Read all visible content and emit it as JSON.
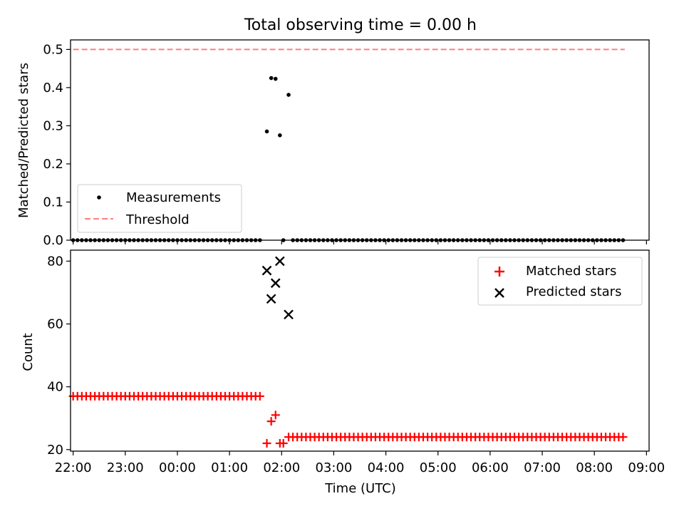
{
  "colors": {
    "measurements": "#000000",
    "threshold": "#ff7f7f",
    "matched": "#ff0000",
    "predicted": "#000000"
  },
  "chart_data": [
    {
      "type": "scatter",
      "title": "Total observing time = 0.00 h",
      "ylabel": "Matched/Predicted stars",
      "xlabel": "",
      "xlim": [
        "21:57",
        "09:03"
      ],
      "ylim": [
        0,
        0.525
      ],
      "yticks": [
        "0.0",
        "0.1",
        "0.2",
        "0.3",
        "0.4",
        "0.5"
      ],
      "legend_position": "lower-left",
      "grid": false,
      "series": [
        {
          "name": "Measurements",
          "marker": "dot",
          "points": [
            [
              "22:00",
              0
            ],
            [
              "22:05",
              0
            ],
            [
              "22:10",
              0
            ],
            [
              "22:15",
              0
            ],
            [
              "22:20",
              0
            ],
            [
              "22:25",
              0
            ],
            [
              "22:30",
              0
            ],
            [
              "22:35",
              0
            ],
            [
              "22:40",
              0
            ],
            [
              "22:45",
              0
            ],
            [
              "22:50",
              0
            ],
            [
              "22:55",
              0
            ],
            [
              "23:00",
              0
            ],
            [
              "23:05",
              0
            ],
            [
              "23:10",
              0
            ],
            [
              "23:15",
              0
            ],
            [
              "23:20",
              0
            ],
            [
              "23:25",
              0
            ],
            [
              "23:30",
              0
            ],
            [
              "23:35",
              0
            ],
            [
              "23:40",
              0
            ],
            [
              "23:45",
              0
            ],
            [
              "23:50",
              0
            ],
            [
              "23:55",
              0
            ],
            [
              "00:00",
              0
            ],
            [
              "00:05",
              0
            ],
            [
              "00:10",
              0
            ],
            [
              "00:15",
              0
            ],
            [
              "00:20",
              0
            ],
            [
              "00:25",
              0
            ],
            [
              "00:30",
              0
            ],
            [
              "00:35",
              0
            ],
            [
              "00:40",
              0
            ],
            [
              "00:45",
              0
            ],
            [
              "00:50",
              0
            ],
            [
              "00:55",
              0
            ],
            [
              "01:00",
              0
            ],
            [
              "01:05",
              0
            ],
            [
              "01:10",
              0
            ],
            [
              "01:15",
              0
            ],
            [
              "01:20",
              0
            ],
            [
              "01:25",
              0
            ],
            [
              "01:30",
              0
            ],
            [
              "01:35",
              0
            ],
            [
              "01:43",
              0.285
            ],
            [
              "01:48",
              0.425
            ],
            [
              "01:53",
              0.423
            ],
            [
              "01:58",
              0.275
            ],
            [
              "02:02",
              0
            ],
            [
              "02:08",
              0.381
            ],
            [
              "02:13",
              0
            ],
            [
              "02:18",
              0
            ],
            [
              "02:23",
              0
            ],
            [
              "02:28",
              0
            ],
            [
              "02:33",
              0
            ],
            [
              "02:38",
              0
            ],
            [
              "02:43",
              0
            ],
            [
              "02:48",
              0
            ],
            [
              "02:53",
              0
            ],
            [
              "02:58",
              0
            ],
            [
              "03:03",
              0
            ],
            [
              "03:08",
              0
            ],
            [
              "03:13",
              0
            ],
            [
              "03:18",
              0
            ],
            [
              "03:23",
              0
            ],
            [
              "03:28",
              0
            ],
            [
              "03:33",
              0
            ],
            [
              "03:38",
              0
            ],
            [
              "03:43",
              0
            ],
            [
              "03:48",
              0
            ],
            [
              "03:53",
              0
            ],
            [
              "03:58",
              0
            ],
            [
              "04:03",
              0
            ],
            [
              "04:08",
              0
            ],
            [
              "04:13",
              0
            ],
            [
              "04:18",
              0
            ],
            [
              "04:23",
              0
            ],
            [
              "04:28",
              0
            ],
            [
              "04:33",
              0
            ],
            [
              "04:38",
              0
            ],
            [
              "04:43",
              0
            ],
            [
              "04:48",
              0
            ],
            [
              "04:53",
              0
            ],
            [
              "04:58",
              0
            ],
            [
              "05:03",
              0
            ],
            [
              "05:08",
              0
            ],
            [
              "05:13",
              0
            ],
            [
              "05:18",
              0
            ],
            [
              "05:23",
              0
            ],
            [
              "05:28",
              0
            ],
            [
              "05:33",
              0
            ],
            [
              "05:38",
              0
            ],
            [
              "05:43",
              0
            ],
            [
              "05:48",
              0
            ],
            [
              "05:53",
              0
            ],
            [
              "05:58",
              0
            ],
            [
              "06:03",
              0
            ],
            [
              "06:08",
              0
            ],
            [
              "06:13",
              0
            ],
            [
              "06:18",
              0
            ],
            [
              "06:23",
              0
            ],
            [
              "06:28",
              0
            ],
            [
              "06:33",
              0
            ],
            [
              "06:38",
              0
            ],
            [
              "06:43",
              0
            ],
            [
              "06:48",
              0
            ],
            [
              "06:53",
              0
            ],
            [
              "06:58",
              0
            ],
            [
              "07:03",
              0
            ],
            [
              "07:08",
              0
            ],
            [
              "07:13",
              0
            ],
            [
              "07:18",
              0
            ],
            [
              "07:23",
              0
            ],
            [
              "07:28",
              0
            ],
            [
              "07:33",
              0
            ],
            [
              "07:38",
              0
            ],
            [
              "07:43",
              0
            ],
            [
              "07:48",
              0
            ],
            [
              "07:53",
              0
            ],
            [
              "07:58",
              0
            ],
            [
              "08:03",
              0
            ],
            [
              "08:08",
              0
            ],
            [
              "08:13",
              0
            ],
            [
              "08:18",
              0
            ],
            [
              "08:23",
              0
            ],
            [
              "08:28",
              0
            ],
            [
              "08:33",
              0
            ]
          ]
        },
        {
          "name": "Threshold",
          "line_style": "dashed",
          "points": [
            [
              "22:00",
              0.5
            ],
            [
              "08:35",
              0.5
            ]
          ]
        }
      ]
    },
    {
      "type": "scatter",
      "title": "",
      "ylabel": "Count",
      "xlabel": "Time (UTC)",
      "xlim": [
        "21:57",
        "09:03"
      ],
      "ylim": [
        19.5,
        83.5
      ],
      "xticks": [
        "22:00",
        "23:00",
        "00:00",
        "01:00",
        "02:00",
        "03:00",
        "04:00",
        "05:00",
        "06:00",
        "07:00",
        "08:00",
        "09:00"
      ],
      "yticks": [
        "20",
        "40",
        "60",
        "80"
      ],
      "legend_position": "upper-right",
      "grid": false,
      "series": [
        {
          "name": "Matched stars",
          "marker": "plus",
          "points": [
            [
              "22:00",
              37
            ],
            [
              "22:05",
              37
            ],
            [
              "22:10",
              37
            ],
            [
              "22:15",
              37
            ],
            [
              "22:20",
              37
            ],
            [
              "22:25",
              37
            ],
            [
              "22:30",
              37
            ],
            [
              "22:35",
              37
            ],
            [
              "22:40",
              37
            ],
            [
              "22:45",
              37
            ],
            [
              "22:50",
              37
            ],
            [
              "22:55",
              37
            ],
            [
              "23:00",
              37
            ],
            [
              "23:05",
              37
            ],
            [
              "23:10",
              37
            ],
            [
              "23:15",
              37
            ],
            [
              "23:20",
              37
            ],
            [
              "23:25",
              37
            ],
            [
              "23:30",
              37
            ],
            [
              "23:35",
              37
            ],
            [
              "23:40",
              37
            ],
            [
              "23:45",
              37
            ],
            [
              "23:50",
              37
            ],
            [
              "23:55",
              37
            ],
            [
              "00:00",
              37
            ],
            [
              "00:05",
              37
            ],
            [
              "00:10",
              37
            ],
            [
              "00:15",
              37
            ],
            [
              "00:20",
              37
            ],
            [
              "00:25",
              37
            ],
            [
              "00:30",
              37
            ],
            [
              "00:35",
              37
            ],
            [
              "00:40",
              37
            ],
            [
              "00:45",
              37
            ],
            [
              "00:50",
              37
            ],
            [
              "00:55",
              37
            ],
            [
              "01:00",
              37
            ],
            [
              "01:05",
              37
            ],
            [
              "01:10",
              37
            ],
            [
              "01:15",
              37
            ],
            [
              "01:20",
              37
            ],
            [
              "01:25",
              37
            ],
            [
              "01:30",
              37
            ],
            [
              "01:35",
              37
            ],
            [
              "01:43",
              22
            ],
            [
              "01:48",
              29
            ],
            [
              "01:53",
              31
            ],
            [
              "01:58",
              22
            ],
            [
              "02:02",
              22
            ],
            [
              "02:08",
              24
            ],
            [
              "02:13",
              24
            ],
            [
              "02:18",
              24
            ],
            [
              "02:23",
              24
            ],
            [
              "02:28",
              24
            ],
            [
              "02:33",
              24
            ],
            [
              "02:38",
              24
            ],
            [
              "02:43",
              24
            ],
            [
              "02:48",
              24
            ],
            [
              "02:53",
              24
            ],
            [
              "02:58",
              24
            ],
            [
              "03:03",
              24
            ],
            [
              "03:08",
              24
            ],
            [
              "03:13",
              24
            ],
            [
              "03:18",
              24
            ],
            [
              "03:23",
              24
            ],
            [
              "03:28",
              24
            ],
            [
              "03:33",
              24
            ],
            [
              "03:38",
              24
            ],
            [
              "03:43",
              24
            ],
            [
              "03:48",
              24
            ],
            [
              "03:53",
              24
            ],
            [
              "03:58",
              24
            ],
            [
              "04:03",
              24
            ],
            [
              "04:08",
              24
            ],
            [
              "04:13",
              24
            ],
            [
              "04:18",
              24
            ],
            [
              "04:23",
              24
            ],
            [
              "04:28",
              24
            ],
            [
              "04:33",
              24
            ],
            [
              "04:38",
              24
            ],
            [
              "04:43",
              24
            ],
            [
              "04:48",
              24
            ],
            [
              "04:53",
              24
            ],
            [
              "04:58",
              24
            ],
            [
              "05:03",
              24
            ],
            [
              "05:08",
              24
            ],
            [
              "05:13",
              24
            ],
            [
              "05:18",
              24
            ],
            [
              "05:23",
              24
            ],
            [
              "05:28",
              24
            ],
            [
              "05:33",
              24
            ],
            [
              "05:38",
              24
            ],
            [
              "05:43",
              24
            ],
            [
              "05:48",
              24
            ],
            [
              "05:53",
              24
            ],
            [
              "05:58",
              24
            ],
            [
              "06:03",
              24
            ],
            [
              "06:08",
              24
            ],
            [
              "06:13",
              24
            ],
            [
              "06:18",
              24
            ],
            [
              "06:23",
              24
            ],
            [
              "06:28",
              24
            ],
            [
              "06:33",
              24
            ],
            [
              "06:38",
              24
            ],
            [
              "06:43",
              24
            ],
            [
              "06:48",
              24
            ],
            [
              "06:53",
              24
            ],
            [
              "06:58",
              24
            ],
            [
              "07:03",
              24
            ],
            [
              "07:08",
              24
            ],
            [
              "07:13",
              24
            ],
            [
              "07:18",
              24
            ],
            [
              "07:23",
              24
            ],
            [
              "07:28",
              24
            ],
            [
              "07:33",
              24
            ],
            [
              "07:38",
              24
            ],
            [
              "07:43",
              24
            ],
            [
              "07:48",
              24
            ],
            [
              "07:53",
              24
            ],
            [
              "07:58",
              24
            ],
            [
              "08:03",
              24
            ],
            [
              "08:08",
              24
            ],
            [
              "08:13",
              24
            ],
            [
              "08:18",
              24
            ],
            [
              "08:23",
              24
            ],
            [
              "08:28",
              24
            ],
            [
              "08:33",
              24
            ]
          ]
        },
        {
          "name": "Predicted stars",
          "marker": "x",
          "points": [
            [
              "01:43",
              77
            ],
            [
              "01:48",
              68
            ],
            [
              "01:53",
              73
            ],
            [
              "01:58",
              80
            ],
            [
              "02:08",
              63
            ]
          ]
        }
      ]
    }
  ]
}
